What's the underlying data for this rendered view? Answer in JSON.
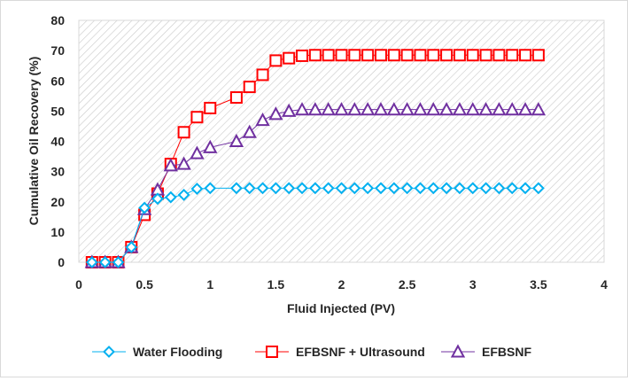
{
  "chart_data": {
    "type": "line",
    "xlabel": "Fluid Injected (PV)",
    "ylabel": "Cumulative Oil Recovery (%)",
    "xlim": [
      0,
      4
    ],
    "ylim": [
      0,
      80
    ],
    "xticks": [
      "0",
      "0.5",
      "1",
      "1.5",
      "2",
      "2.5",
      "3",
      "3.5",
      "4"
    ],
    "yticks": [
      "0",
      "10",
      "20",
      "30",
      "40",
      "50",
      "60",
      "70",
      "80"
    ],
    "grid": false,
    "plot_background": "diagonal-hatch",
    "legend_position": "bottom",
    "series": [
      {
        "name": "Water Flooding",
        "color": "#00b0f0",
        "marker": "diamond",
        "x": [
          0.1,
          0.2,
          0.3,
          0.4,
          0.5,
          0.6,
          0.7,
          0.8,
          0.9,
          1.0,
          1.2,
          1.3,
          1.4,
          1.5,
          1.6,
          1.7,
          1.8,
          1.9,
          2.0,
          2.1,
          2.2,
          2.3,
          2.4,
          2.5,
          2.6,
          2.7,
          2.8,
          2.9,
          3.0,
          3.1,
          3.2,
          3.3,
          3.4,
          3.5
        ],
        "y": [
          0,
          0,
          0,
          5,
          18,
          21,
          21.5,
          22.3,
          24.3,
          24.5,
          24.5,
          24.5,
          24.5,
          24.5,
          24.5,
          24.5,
          24.5,
          24.5,
          24.5,
          24.5,
          24.5,
          24.5,
          24.5,
          24.5,
          24.5,
          24.5,
          24.5,
          24.5,
          24.5,
          24.5,
          24.5,
          24.5,
          24.5,
          24.5
        ]
      },
      {
        "name": "EFBSNF + Ultrasound",
        "color": "#ff0000",
        "marker": "square",
        "x": [
          0.1,
          0.2,
          0.3,
          0.4,
          0.5,
          0.6,
          0.7,
          0.8,
          0.9,
          1.0,
          1.2,
          1.3,
          1.4,
          1.5,
          1.6,
          1.7,
          1.8,
          1.9,
          2.0,
          2.1,
          2.2,
          2.3,
          2.4,
          2.5,
          2.6,
          2.7,
          2.8,
          2.9,
          3.0,
          3.1,
          3.2,
          3.3,
          3.4,
          3.5
        ],
        "y": [
          0,
          0,
          0,
          5,
          15.7,
          22.7,
          32.5,
          43,
          48,
          51,
          54.5,
          58,
          62,
          66.7,
          67.5,
          68.3,
          68.5,
          68.5,
          68.5,
          68.5,
          68.5,
          68.5,
          68.5,
          68.5,
          68.5,
          68.5,
          68.5,
          68.5,
          68.5,
          68.5,
          68.5,
          68.5,
          68.5,
          68.5
        ]
      },
      {
        "name": "EFBSNF",
        "color": "#7030a0",
        "marker": "triangle",
        "x": [
          0.1,
          0.2,
          0.3,
          0.4,
          0.5,
          0.6,
          0.7,
          0.8,
          0.9,
          1.0,
          1.2,
          1.3,
          1.4,
          1.5,
          1.6,
          1.7,
          1.8,
          1.9,
          2.0,
          2.1,
          2.2,
          2.3,
          2.4,
          2.5,
          2.6,
          2.7,
          2.8,
          2.9,
          3.0,
          3.1,
          3.2,
          3.3,
          3.4,
          3.5
        ],
        "y": [
          0,
          0,
          0,
          5,
          17.5,
          24,
          32,
          32.5,
          36,
          38,
          40,
          43,
          47,
          49,
          50,
          50.5,
          50.5,
          50.5,
          50.5,
          50.5,
          50.5,
          50.5,
          50.5,
          50.5,
          50.5,
          50.5,
          50.5,
          50.5,
          50.5,
          50.5,
          50.5,
          50.5,
          50.5,
          50.5
        ]
      }
    ]
  }
}
